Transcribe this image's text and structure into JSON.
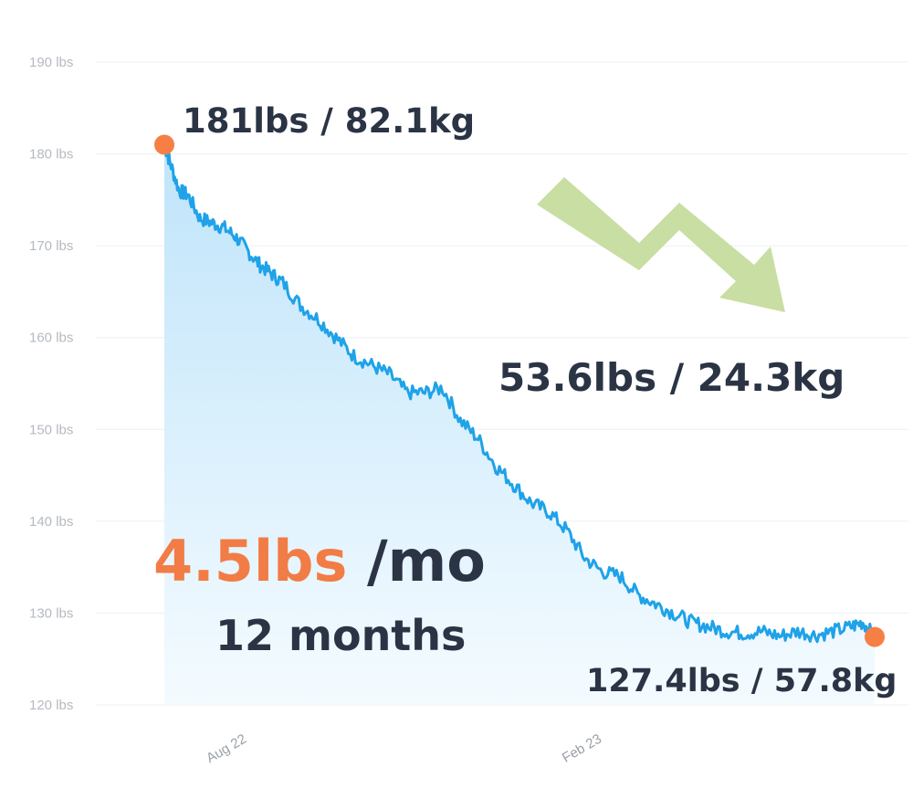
{
  "colors": {
    "line": "#1fa2e8",
    "area_top": "#bfe4fa",
    "area_bottom": "#f4fbff",
    "marker": "#f57f45",
    "accent_text": "#f27c45",
    "annotation_text": "#2b3445",
    "arrow": "#c9dea3",
    "grid": "#eceff3"
  },
  "chart_data": {
    "type": "area",
    "y_unit": "lbs",
    "ylim": [
      120,
      190
    ],
    "y_ticks": [
      190,
      180,
      170,
      160,
      150,
      140,
      130,
      120
    ],
    "y_tick_labels": [
      "190 lbs",
      "180 lbs",
      "170 lbs",
      "160 lbs",
      "150 lbs",
      "140 lbs",
      "130 lbs",
      "120 lbs"
    ],
    "x_tick_labels": [
      "Aug 22",
      "Feb 23"
    ],
    "x_tick_months": [
      1,
      7
    ],
    "xlim_months": [
      0,
      12
    ],
    "grid": true,
    "legend": "none",
    "series": [
      {
        "x_months": [
          0,
          0.1,
          0.25,
          0.4,
          0.6,
          0.8,
          1.0,
          1.2,
          1.4,
          1.6,
          1.8,
          2.0,
          2.3,
          2.6,
          2.9,
          3.2,
          3.5,
          3.8,
          4.1,
          4.4,
          4.7,
          5.0,
          5.3,
          5.6,
          5.9,
          6.2,
          6.5,
          6.8,
          7.1,
          7.4,
          7.7,
          8.0,
          8.3,
          8.6,
          8.9,
          9.2,
          9.5,
          9.8,
          10.1,
          10.4,
          10.7,
          11.0,
          11.3,
          11.6,
          11.8,
          12.0
        ],
        "values": [
          181,
          179,
          176,
          175.5,
          173,
          172.5,
          172,
          171,
          169.5,
          168,
          167,
          166,
          163.5,
          162,
          160,
          158,
          157,
          156,
          154,
          154,
          154.5,
          151,
          149,
          146,
          144,
          142,
          141,
          139,
          136,
          134.5,
          134,
          132,
          131,
          130,
          129,
          128.5,
          128,
          127.8,
          128,
          127.5,
          128,
          127.6,
          128,
          128.5,
          129,
          127.4
        ]
      }
    ],
    "annotations": {
      "start_label": "181lbs / 82.1kg",
      "end_label": "127.4lbs / 57.8kg",
      "total_loss": "53.6lbs / 24.3kg",
      "rate_value": "4.5lbs",
      "rate_unit": " /mo",
      "duration": "12 months"
    }
  }
}
